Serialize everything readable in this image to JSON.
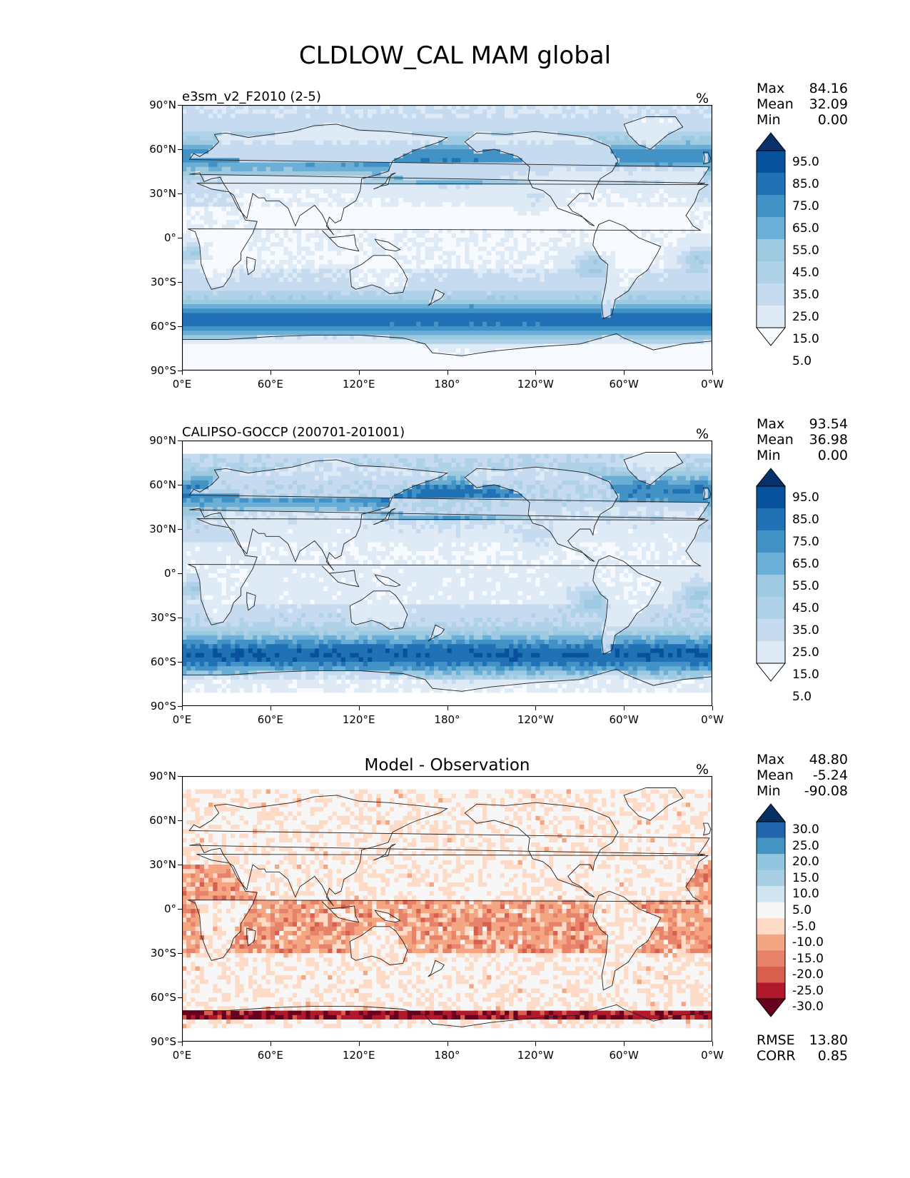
{
  "title": "CLDLOW_CAL MAM global",
  "units": "%",
  "lat_ticks": [
    "90°N",
    "60°N",
    "30°N",
    "0°",
    "30°S",
    "60°S",
    "90°S"
  ],
  "lon_ticks": [
    "0°E",
    "60°E",
    "120°E",
    "180°",
    "120°W",
    "60°W",
    "0°W"
  ],
  "panels": [
    {
      "id": "model",
      "title": "e3sm_v2_F2010 (2-5)",
      "stats": {
        "max_label": "Max",
        "max": "84.16",
        "mean_label": "Mean",
        "mean": "32.09",
        "min_label": "Min",
        "min": "0.00"
      },
      "colorbar_labels": [
        "95.0",
        "85.0",
        "75.0",
        "65.0",
        "55.0",
        "45.0",
        "35.0",
        "25.0",
        "15.0",
        "5.0"
      ],
      "colormap": [
        "#f7fbff",
        "#deebf7",
        "#c6dbef",
        "#b0d2e8",
        "#9ecae1",
        "#6baed6",
        "#4292c6",
        "#2171b5",
        "#08519c",
        "#08306b"
      ]
    },
    {
      "id": "obs",
      "title": "CALIPSO-GOCCP (200701-201001)",
      "stats": {
        "max_label": "Max",
        "max": "93.54",
        "mean_label": "Mean",
        "mean": "36.98",
        "min_label": "Min",
        "min": "0.00"
      },
      "colorbar_labels": [
        "95.0",
        "85.0",
        "75.0",
        "65.0",
        "55.0",
        "45.0",
        "35.0",
        "25.0",
        "15.0",
        "5.0"
      ],
      "colormap": [
        "#f7fbff",
        "#deebf7",
        "#c6dbef",
        "#b0d2e8",
        "#9ecae1",
        "#6baed6",
        "#4292c6",
        "#2171b5",
        "#08519c",
        "#08306b"
      ]
    },
    {
      "id": "diff",
      "title": "Model - Observation",
      "stats": {
        "max_label": "Max",
        "max": "48.80",
        "mean_label": "Mean",
        "mean": "-5.24",
        "min_label": "Min",
        "min": "-90.08"
      },
      "colorbar_labels": [
        "30.0",
        "25.0",
        "20.0",
        "15.0",
        "10.0",
        "5.0",
        "-5.0",
        "-10.0",
        "-15.0",
        "-20.0",
        "-25.0",
        "-30.0"
      ],
      "colormap": [
        "#67001f",
        "#b2182b",
        "#d6604d",
        "#e8836b",
        "#f4a582",
        "#fddbc7",
        "#f7f7f7",
        "#d1e5f0",
        "#a8cfe4",
        "#92c5de",
        "#4393c3",
        "#2166ac",
        "#053061"
      ],
      "rmse_label": "RMSE",
      "rmse": "13.80",
      "corr_label": "CORR",
      "corr": "0.85"
    }
  ]
}
